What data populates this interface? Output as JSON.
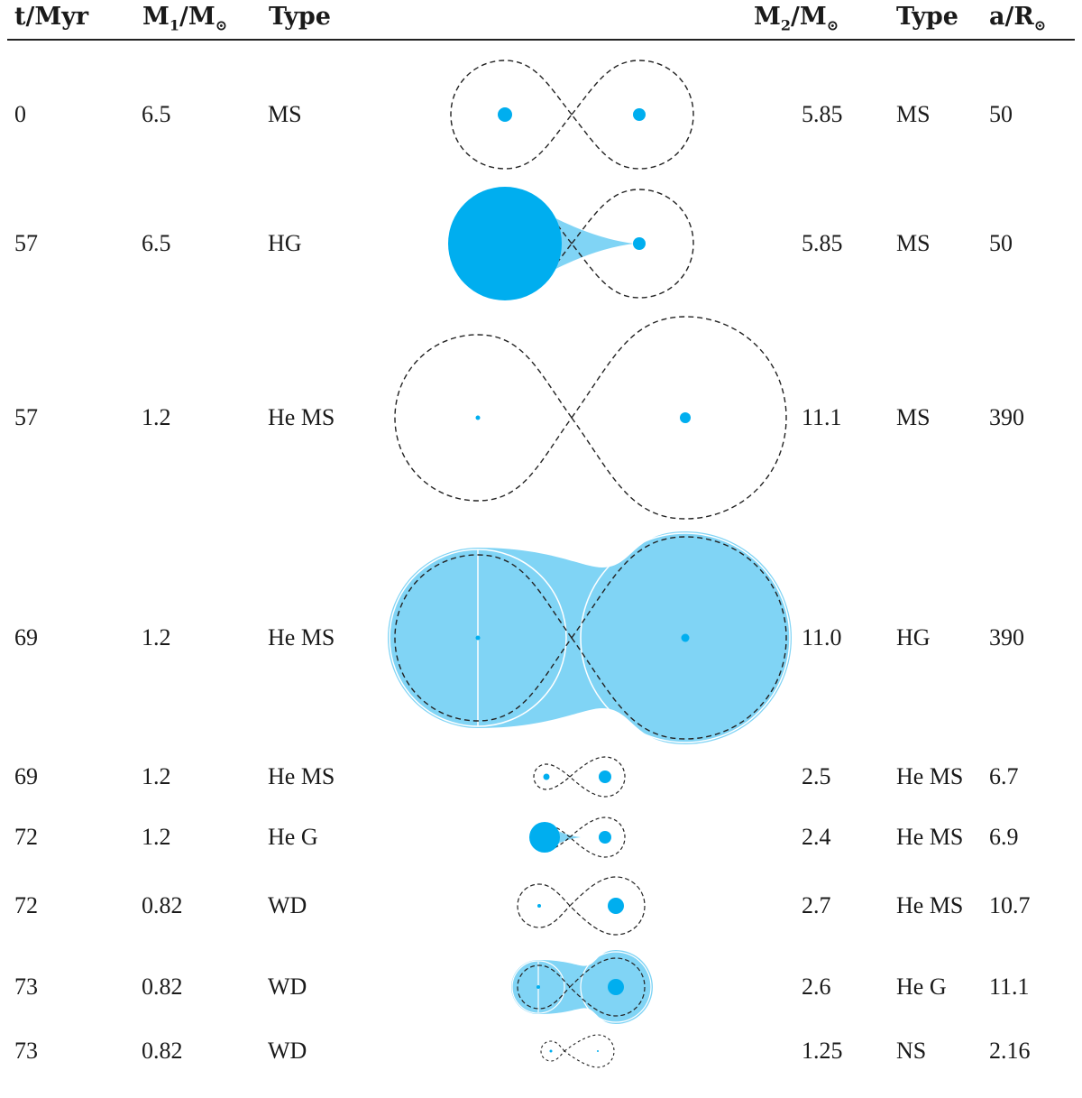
{
  "header": {
    "t": "t/Myr",
    "m1": "M",
    "m1_sub": "1",
    "m1_tail": "/M",
    "m1_sun": "⊙",
    "type1": "Type",
    "m2": "M",
    "m2_sub": "2",
    "m2_tail": "/M",
    "m2_sun": "⊙",
    "type2": "Type",
    "a": "a/R",
    "a_sun": "⊙"
  },
  "colors": {
    "star": "#00aeef",
    "envelope": "#80d4f5",
    "roche": "#222222"
  },
  "rows": [
    {
      "t": "0",
      "m1": "6.5",
      "type1": "MS",
      "m2": "5.85",
      "type2": "MS",
      "a": "50",
      "stage": "detached"
    },
    {
      "t": "57",
      "m1": "6.5",
      "type1": "HG",
      "m2": "5.85",
      "type2": "MS",
      "a": "50",
      "stage": "roche-lobe overflow from star 1"
    },
    {
      "t": "57",
      "m1": "1.2",
      "type1": "He MS",
      "m2": "11.1",
      "type2": "MS",
      "a": "390",
      "stage": "detached"
    },
    {
      "t": "69",
      "m1": "1.2",
      "type1": "He MS",
      "m2": "11.0",
      "type2": "HG",
      "a": "390",
      "stage": "common envelope"
    },
    {
      "t": "69",
      "m1": "1.2",
      "type1": "He MS",
      "m2": "2.5",
      "type2": "He MS",
      "a": "6.7",
      "stage": "detached"
    },
    {
      "t": "72",
      "m1": "1.2",
      "type1": "He G",
      "m2": "2.4",
      "type2": "He MS",
      "a": "6.9",
      "stage": "roche-lobe overflow from star 1"
    },
    {
      "t": "72",
      "m1": "0.82",
      "type1": "WD",
      "m2": "2.7",
      "type2": "He MS",
      "a": "10.7",
      "stage": "detached"
    },
    {
      "t": "73",
      "m1": "0.82",
      "type1": "WD",
      "m2": "2.6",
      "type2": "He G",
      "a": "11.1",
      "stage": "common envelope"
    },
    {
      "t": "73",
      "m1": "0.82",
      "type1": "WD",
      "m2": "1.25",
      "type2": "NS",
      "a": "2.16",
      "stage": "detached"
    }
  ]
}
